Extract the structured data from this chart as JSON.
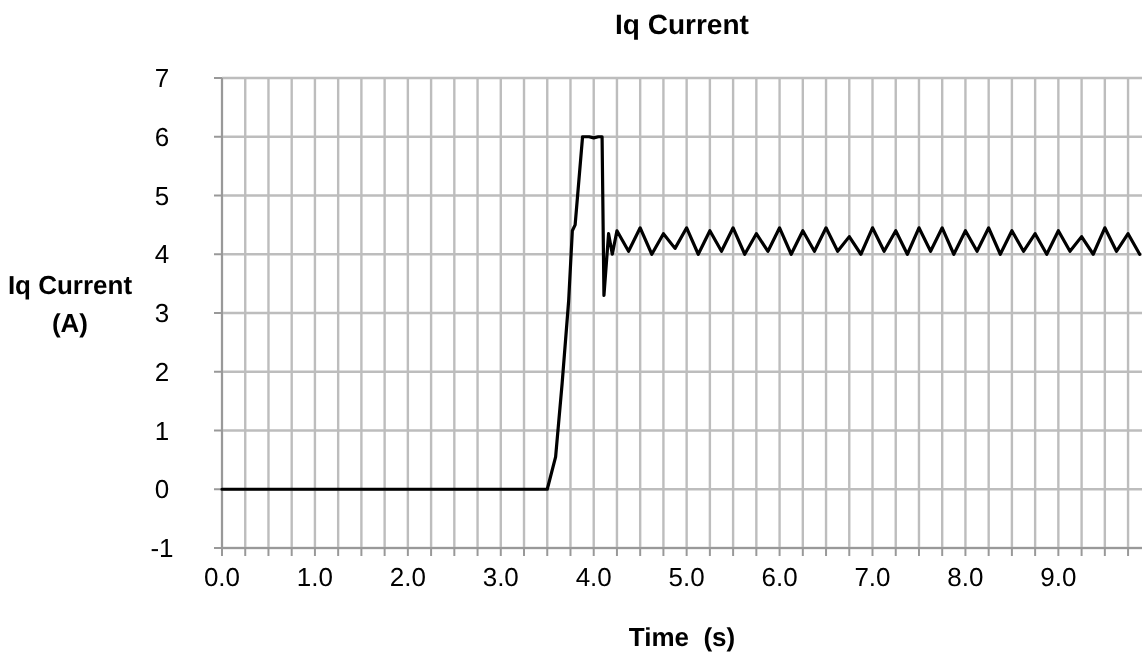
{
  "chart_data": {
    "type": "line",
    "title": "Iq Current",
    "xlabel": "Time  (s)",
    "ylabel": "Iq Current\n(A)",
    "xlim": [
      0,
      9.9
    ],
    "ylim": [
      -1,
      7
    ],
    "xticks": [
      {
        "value": 0,
        "label": "0.0"
      },
      {
        "value": 0.25,
        "label": null
      },
      {
        "value": 0.5,
        "label": null
      },
      {
        "value": 0.75,
        "label": null
      },
      {
        "value": 1,
        "label": "1.0"
      },
      {
        "value": 1.25,
        "label": null
      },
      {
        "value": 1.5,
        "label": null
      },
      {
        "value": 1.75,
        "label": null
      },
      {
        "value": 2,
        "label": "2.0"
      },
      {
        "value": 2.25,
        "label": null
      },
      {
        "value": 2.5,
        "label": null
      },
      {
        "value": 2.75,
        "label": null
      },
      {
        "value": 3,
        "label": "3.0"
      },
      {
        "value": 3.25,
        "label": null
      },
      {
        "value": 3.5,
        "label": null
      },
      {
        "value": 3.75,
        "label": null
      },
      {
        "value": 4,
        "label": "4.0"
      },
      {
        "value": 4.25,
        "label": null
      },
      {
        "value": 4.5,
        "label": null
      },
      {
        "value": 4.75,
        "label": null
      },
      {
        "value": 5,
        "label": "5.0"
      },
      {
        "value": 5.25,
        "label": null
      },
      {
        "value": 5.5,
        "label": null
      },
      {
        "value": 5.75,
        "label": null
      },
      {
        "value": 6,
        "label": "6.0"
      },
      {
        "value": 6.25,
        "label": null
      },
      {
        "value": 6.5,
        "label": null
      },
      {
        "value": 6.75,
        "label": null
      },
      {
        "value": 7,
        "label": "7.0"
      },
      {
        "value": 7.25,
        "label": null
      },
      {
        "value": 7.5,
        "label": null
      },
      {
        "value": 7.75,
        "label": null
      },
      {
        "value": 8,
        "label": "8.0"
      },
      {
        "value": 8.25,
        "label": null
      },
      {
        "value": 8.5,
        "label": null
      },
      {
        "value": 8.75,
        "label": null
      },
      {
        "value": 9,
        "label": "9.0"
      },
      {
        "value": 9.25,
        "label": null
      },
      {
        "value": 9.5,
        "label": null
      },
      {
        "value": 9.75,
        "label": null
      }
    ],
    "yticks": [
      -1,
      0,
      1,
      2,
      3,
      4,
      5,
      6,
      7
    ],
    "grid": true,
    "marker": "none",
    "line_style": "solid",
    "x": [
      0,
      3.5,
      3.59,
      3.66,
      3.73,
      3.77,
      3.8,
      3.88,
      3.95,
      4.0,
      4.05,
      4.09,
      4.11,
      4.16,
      4.2,
      4.25,
      4.375,
      4.5,
      4.625,
      4.75,
      4.875,
      5.0,
      5.125,
      5.25,
      5.375,
      5.5,
      5.625,
      5.75,
      5.875,
      6.0,
      6.125,
      6.25,
      6.375,
      6.5,
      6.625,
      6.75,
      6.875,
      7.0,
      7.125,
      7.25,
      7.375,
      7.5,
      7.625,
      7.75,
      7.875,
      8.0,
      8.125,
      8.25,
      8.375,
      8.5,
      8.625,
      8.75,
      8.875,
      9.0,
      9.125,
      9.25,
      9.375,
      9.5,
      9.625,
      9.75,
      9.875
    ],
    "series": [
      {
        "color": "#000000",
        "values": [
          0,
          0,
          0.55,
          1.8,
          3.2,
          4.4,
          4.5,
          6.0,
          6.0,
          5.98,
          6.0,
          6.0,
          3.3,
          4.35,
          4.0,
          4.4,
          4.05,
          4.45,
          4.0,
          4.35,
          4.1,
          4.45,
          4.0,
          4.4,
          4.05,
          4.45,
          4.0,
          4.35,
          4.05,
          4.45,
          4.0,
          4.4,
          4.05,
          4.45,
          4.05,
          4.3,
          4.0,
          4.45,
          4.05,
          4.4,
          4.0,
          4.45,
          4.05,
          4.45,
          4.0,
          4.4,
          4.05,
          4.45,
          4.0,
          4.4,
          4.05,
          4.35,
          4.0,
          4.4,
          4.05,
          4.3,
          4.0,
          4.45,
          4.05,
          4.35,
          4.0
        ]
      }
    ]
  }
}
